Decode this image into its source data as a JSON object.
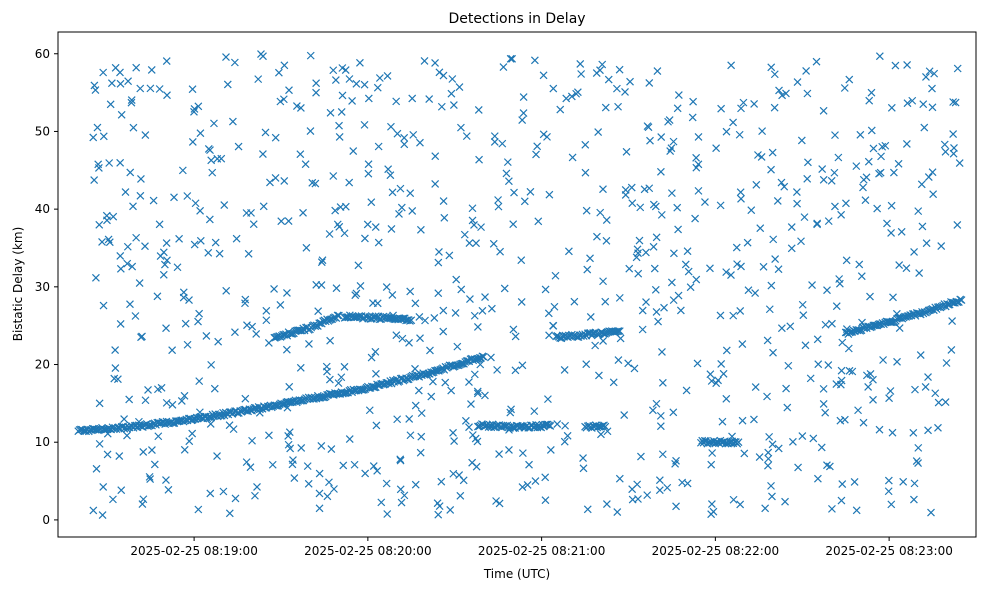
{
  "chart_data": {
    "type": "scatter",
    "title": "Detections in Delay",
    "xlabel": "Time (UTC)",
    "ylabel": "Bistatic Delay (km)",
    "marker": "x",
    "color": "#1f77b4",
    "grid": false,
    "x_ticks": [
      "2025-02-25 08:19:00",
      "2025-02-25 08:20:00",
      "2025-02-25 08:21:00",
      "2025-02-25 08:22:00",
      "2025-02-25 08:23:00"
    ],
    "y_ticks": [
      0,
      10,
      20,
      30,
      40,
      50,
      60
    ],
    "xlim": [
      "2025-02-25 08:18:13",
      "2025-02-25 08:23:30"
    ],
    "ylim": [
      -2.2,
      62.8
    ],
    "tracks": [
      {
        "x": [
          "2025-02-25 08:18:20",
          "2025-02-25 08:18:40",
          "2025-02-25 08:19:00",
          "2025-02-25 08:19:20",
          "2025-02-25 08:19:40",
          "2025-02-25 08:20:00",
          "2025-02-25 08:20:20",
          "2025-02-25 08:20:40"
        ],
        "y": [
          11.5,
          12.0,
          13.0,
          14.2,
          15.6,
          17.0,
          18.8,
          21.0
        ]
      },
      {
        "x": [
          "2025-02-25 08:19:28",
          "2025-02-25 08:19:40",
          "2025-02-25 08:19:50"
        ],
        "y": [
          23.5,
          24.7,
          26.3
        ]
      },
      {
        "x": [
          "2025-02-25 08:19:52",
          "2025-02-25 08:20:05",
          "2025-02-25 08:20:15"
        ],
        "y": [
          26.2,
          26.0,
          25.7
        ]
      },
      {
        "x": [
          "2025-02-25 08:20:38",
          "2025-02-25 08:20:50",
          "2025-02-25 08:21:03"
        ],
        "y": [
          12.2,
          12.0,
          12.1
        ]
      },
      {
        "x": [
          "2025-02-25 08:21:05",
          "2025-02-25 08:21:15",
          "2025-02-25 08:21:27"
        ],
        "y": [
          23.5,
          23.8,
          24.3
        ]
      },
      {
        "x": [
          "2025-02-25 08:21:15",
          "2025-02-25 08:21:22"
        ],
        "y": [
          12.0,
          12.0
        ]
      },
      {
        "x": [
          "2025-02-25 08:21:55",
          "2025-02-25 08:22:08"
        ],
        "y": [
          10.0,
          10.0
        ]
      },
      {
        "x": [
          "2025-02-25 08:22:45",
          "2025-02-25 08:23:00",
          "2025-02-25 08:23:10",
          "2025-02-25 08:23:25"
        ],
        "y": [
          24.0,
          25.5,
          26.5,
          28.3
        ]
      }
    ],
    "clutter": {
      "count": 900,
      "x_range": [
        "2025-02-25 08:18:25",
        "2025-02-25 08:23:25"
      ],
      "y_range": [
        0.5,
        60
      ]
    }
  }
}
